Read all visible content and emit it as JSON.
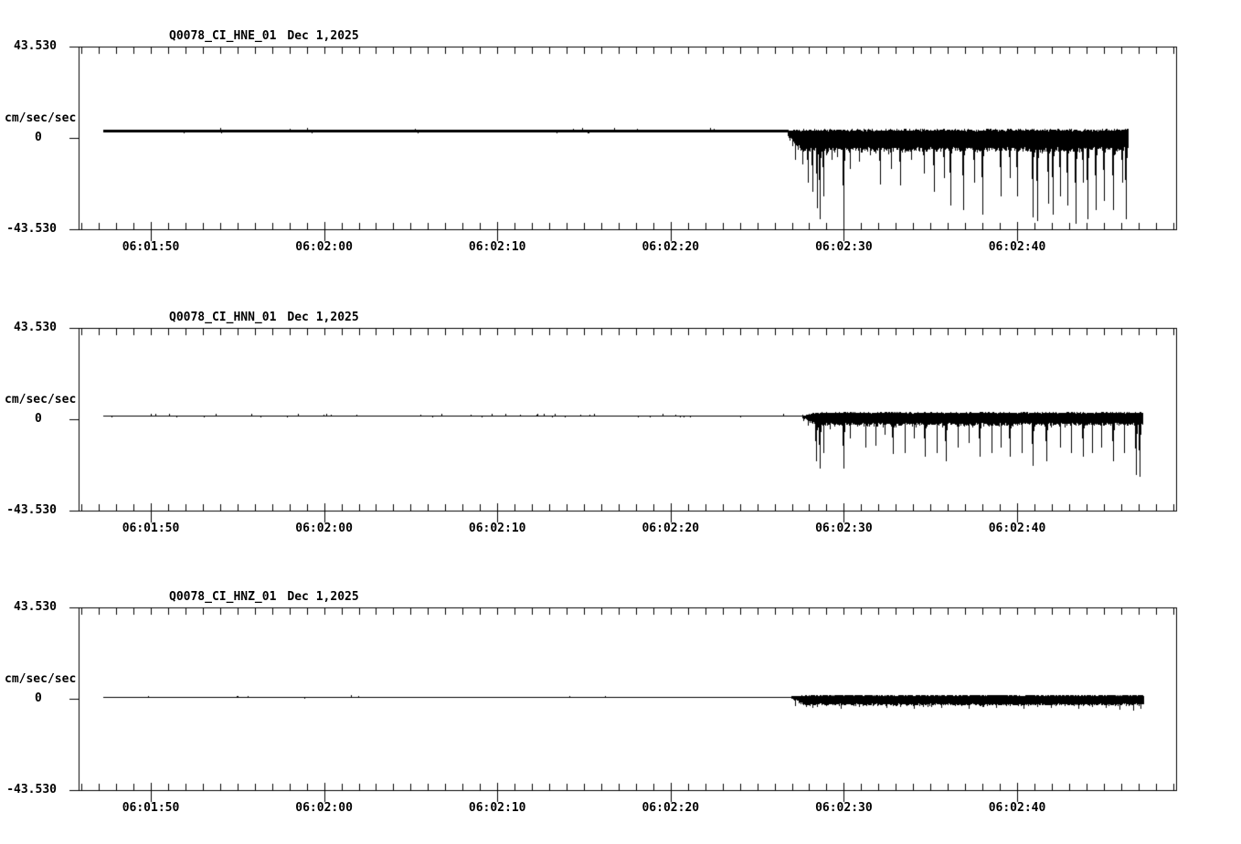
{
  "page": {
    "background": "#ffffff",
    "foreground": "#000000"
  },
  "chart_data": [
    {
      "type": "line",
      "title": "Q0078_CI_HNE_01",
      "date": "Dec 1,2025",
      "ylabel": "cm/sec/sec",
      "y_tick_labels": [
        "43.530",
        "0",
        "-43.530"
      ],
      "ylim": [
        -43.53,
        43.53
      ],
      "x_tick_labels": [
        "06:01:50",
        "06:02:00",
        "06:02:10",
        "06:02:20",
        "06:02:30",
        "06:02:40"
      ],
      "x_ref_label": "06:01:50",
      "x_range_s": [
        -4.2,
        59.2
      ],
      "x_tick_interval_s": 10,
      "minor_tick_interval_s": 1,
      "grid": false,
      "band": {
        "top": 3.2,
        "bottom": -4.5
      },
      "trace": {
        "start_s": -2.75,
        "end_s": 56.4,
        "onset_s": 36.76,
        "baseline": 3.2,
        "spikes": [
          [
            37.0,
            -3.9
          ],
          [
            37.2,
            -10.4
          ],
          [
            37.6,
            -12.6
          ],
          [
            37.9,
            -21.3
          ],
          [
            38.2,
            -25.7
          ],
          [
            38.45,
            -33.5
          ],
          [
            38.6,
            -38.7
          ],
          [
            38.8,
            -27.9
          ],
          [
            39.0,
            -8.3
          ],
          [
            39.3,
            -10.4
          ],
          [
            39.6,
            -9.1
          ],
          [
            40.0,
            -43.8
          ],
          [
            40.35,
            -14.8
          ],
          [
            40.9,
            -11.3
          ],
          [
            41.5,
            -8.3
          ],
          [
            42.1,
            -22.2
          ],
          [
            42.7,
            -14.8
          ],
          [
            43.25,
            -22.6
          ],
          [
            43.9,
            -10.4
          ],
          [
            44.6,
            -17.0
          ],
          [
            45.2,
            -25.7
          ],
          [
            45.8,
            -19.2
          ],
          [
            46.15,
            -32.2
          ],
          [
            46.9,
            -34.4
          ],
          [
            47.5,
            -21.3
          ],
          [
            48.0,
            -36.6
          ],
          [
            49.05,
            -27.9
          ],
          [
            49.6,
            -19.2
          ],
          [
            50.0,
            -27.9
          ],
          [
            50.9,
            -37.9
          ],
          [
            51.15,
            -39.6
          ],
          [
            51.8,
            -31.3
          ],
          [
            52.05,
            -36.6
          ],
          [
            52.5,
            -27.9
          ],
          [
            52.9,
            -32.2
          ],
          [
            53.4,
            -40.9
          ],
          [
            53.8,
            -21.3
          ],
          [
            54.05,
            -38.7
          ],
          [
            54.55,
            -34.4
          ],
          [
            55.0,
            -30.0
          ],
          [
            55.55,
            -34.4
          ],
          [
            56.05,
            -21.3
          ],
          [
            56.3,
            -38.7
          ]
        ]
      }
    },
    {
      "type": "line",
      "title": "Q0078_CI_HNN_01",
      "date": "Dec 1,2025",
      "ylabel": "cm/sec/sec",
      "y_tick_labels": [
        "43.530",
        "0",
        "-43.530"
      ],
      "ylim": [
        -43.53,
        43.53
      ],
      "x_tick_labels": [
        "06:01:50",
        "06:02:00",
        "06:02:10",
        "06:02:20",
        "06:02:30",
        "06:02:40"
      ],
      "x_ref_label": "06:01:50",
      "x_range_s": [
        -4.2,
        59.2
      ],
      "x_tick_interval_s": 10,
      "minor_tick_interval_s": 1,
      "grid": false,
      "band": {
        "top": 2.8,
        "bottom": -1.8
      },
      "trace": {
        "start_s": -2.75,
        "end_s": 57.2,
        "onset_s": 37.6,
        "baseline": 1.5,
        "spikes": [
          [
            37.9,
            -3.0
          ],
          [
            38.4,
            -20.0
          ],
          [
            38.6,
            -23.1
          ],
          [
            38.8,
            -15.7
          ],
          [
            39.2,
            -4.8
          ],
          [
            40.0,
            -23.5
          ],
          [
            40.35,
            -9.1
          ],
          [
            41.25,
            -13.5
          ],
          [
            41.8,
            -12.6
          ],
          [
            42.35,
            -7.0
          ],
          [
            42.85,
            -16.5
          ],
          [
            43.5,
            -15.7
          ],
          [
            44.05,
            -9.1
          ],
          [
            44.65,
            -17.8
          ],
          [
            45.35,
            -15.7
          ],
          [
            45.9,
            -20.0
          ],
          [
            46.55,
            -13.5
          ],
          [
            47.2,
            -11.3
          ],
          [
            47.85,
            -17.8
          ],
          [
            48.5,
            -15.7
          ],
          [
            49.05,
            -13.5
          ],
          [
            49.6,
            -17.8
          ],
          [
            50.25,
            -15.7
          ],
          [
            50.9,
            -22.2
          ],
          [
            51.7,
            -20.0
          ],
          [
            52.5,
            -13.5
          ],
          [
            53.1,
            -15.7
          ],
          [
            53.8,
            -17.8
          ],
          [
            54.3,
            -15.7
          ],
          [
            54.85,
            -13.5
          ],
          [
            55.55,
            -20.0
          ],
          [
            56.15,
            -15.7
          ],
          [
            56.85,
            -26.5
          ],
          [
            57.05,
            -27.4
          ]
        ]
      }
    },
    {
      "type": "line",
      "title": "Q0078_CI_HNZ_01",
      "date": "Dec 1,2025",
      "ylabel": "cm/sec/sec",
      "y_tick_labels": [
        "43.530",
        "0",
        "-43.530"
      ],
      "ylim": [
        -43.53,
        43.53
      ],
      "x_tick_labels": [
        "06:01:50",
        "06:02:00",
        "06:02:10",
        "06:02:20",
        "06:02:30",
        "06:02:40"
      ],
      "x_ref_label": "06:01:50",
      "x_range_s": [
        -4.2,
        59.2
      ],
      "x_tick_interval_s": 10,
      "minor_tick_interval_s": 1,
      "grid": false,
      "band": {
        "top": 1.4,
        "bottom": -2.4
      },
      "trace": {
        "start_s": -2.75,
        "end_s": 57.3,
        "onset_s": 36.92,
        "baseline": 0.8,
        "spikes": [
          [
            37.2,
            -3.5
          ],
          [
            37.5,
            -2.6
          ],
          [
            37.8,
            -3.9
          ],
          [
            38.2,
            -4.4
          ],
          [
            39.0,
            -3.5
          ],
          [
            39.8,
            -4.8
          ],
          [
            40.9,
            -3.9
          ],
          [
            41.65,
            -3.5
          ],
          [
            42.45,
            -4.4
          ],
          [
            43.25,
            -3.9
          ],
          [
            44.05,
            -4.8
          ],
          [
            44.85,
            -3.9
          ],
          [
            45.6,
            -4.4
          ],
          [
            46.4,
            -3.5
          ],
          [
            47.2,
            -4.8
          ],
          [
            48.0,
            -3.9
          ],
          [
            48.8,
            -4.4
          ],
          [
            49.6,
            -3.5
          ],
          [
            50.35,
            -4.8
          ],
          [
            51.15,
            -3.9
          ],
          [
            51.95,
            -4.4
          ],
          [
            52.75,
            -3.5
          ],
          [
            53.55,
            -4.8
          ],
          [
            54.3,
            -3.9
          ],
          [
            55.1,
            -4.4
          ],
          [
            55.9,
            -5.2
          ],
          [
            56.7,
            -5.7
          ],
          [
            57.1,
            -4.8
          ]
        ]
      }
    }
  ]
}
